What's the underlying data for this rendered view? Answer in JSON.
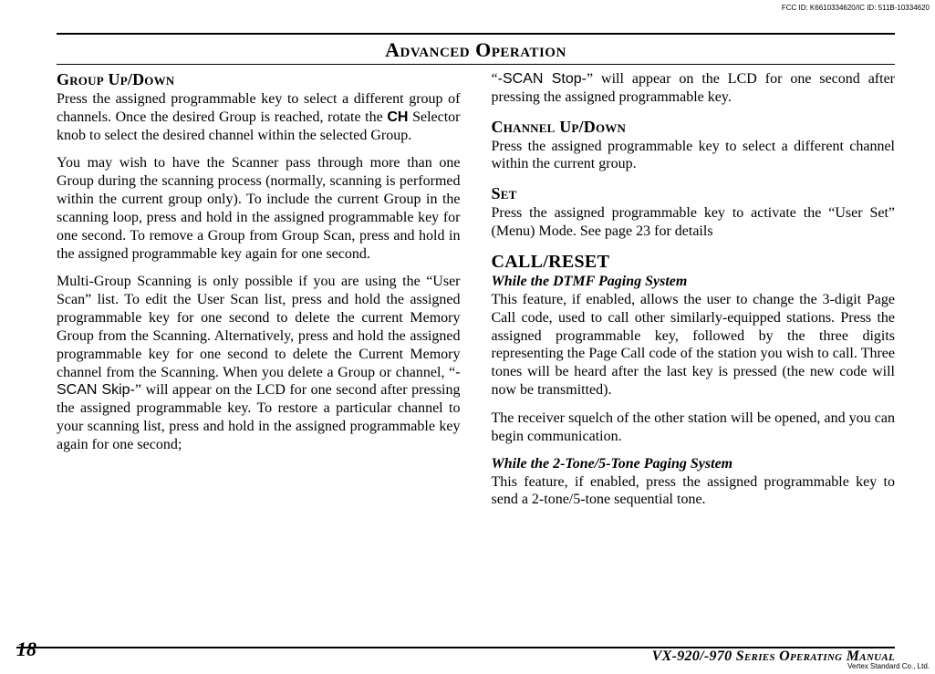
{
  "doc": {
    "fcc_line": "FCC ID: K6610334620/IC ID: 511B-10334620",
    "title": "Advanced Operation",
    "page_number": "18",
    "manual_line": "VX-920/-970 Series Operating Manual",
    "vendor": "Vertex Standard Co., Ltd."
  },
  "left": {
    "group_head": "Group Up/Down",
    "p1a": "Press the assigned programmable key to select a different group of channels. Once the desired Group is reached, rotate the ",
    "p1_ch": "CH",
    "p1b": " Selector knob to select the desired channel within the selected Group.",
    "p2": "You may wish to have the Scanner pass through more than one Group during the scanning process (normally, scanning is performed within the current group only). To include the current Group in the scanning loop, press and hold in the assigned programmable key for one second. To remove a Group from Group Scan, press and hold in the assigned programmable key again for one second.",
    "p3a": "Multi-Group Scanning is only possible if you are using the “User Scan” list. To edit the User Scan list, press and hold the assigned programmable key for one second to delete the current Memory Group from the Scanning. Alternatively, press and hold the assigned programmable key for one second to delete the Current Memory channel from the Scanning. When you delete a Group or channel, “",
    "p3_skip": "-SCAN Skip-",
    "p3b": "” will appear on the LCD for one second after pressing the assigned programmable key. To restore a particular channel to your scanning list, press and hold in the assigned programmable key again for one second;"
  },
  "right": {
    "p0a": "“",
    "p0_stop": "-SCAN Stop-",
    "p0b": "” will appear on the LCD for one second after pressing the assigned programmable key.",
    "chan_head": "Channel Up/Down",
    "chan_p": "Press the assigned programmable key to select a different channel within the current group.",
    "set_head": "Set",
    "set_p": "Press the assigned programmable key to activate the “User Set” (Menu) Mode. See page 23 for details",
    "call_head": "CALL/RESET",
    "dtmf_sub": "While the DTMF Paging System",
    "dtmf_p1": "This feature, if enabled, allows the user to change the 3-digit Page Call code, used to call other similarly-equipped stations. Press the assigned programmable key, followed by the three digits representing the Page Call code of the station you wish to call. Three tones will be heard after the last key is pressed (the new code will now be transmitted).",
    "dtmf_p2": "The receiver squelch of the other station will be opened, and you can begin communication.",
    "tone_sub": "While the 2-Tone/5-Tone Paging System",
    "tone_p": "This feature, if enabled, press the assigned programmable key to send a 2-tone/5-tone sequential tone."
  },
  "style": {
    "font_body_pt": 16,
    "font_title_pt": 22,
    "font_head_pt": 18,
    "color_text": "#000000",
    "color_bg": "#ffffff"
  }
}
